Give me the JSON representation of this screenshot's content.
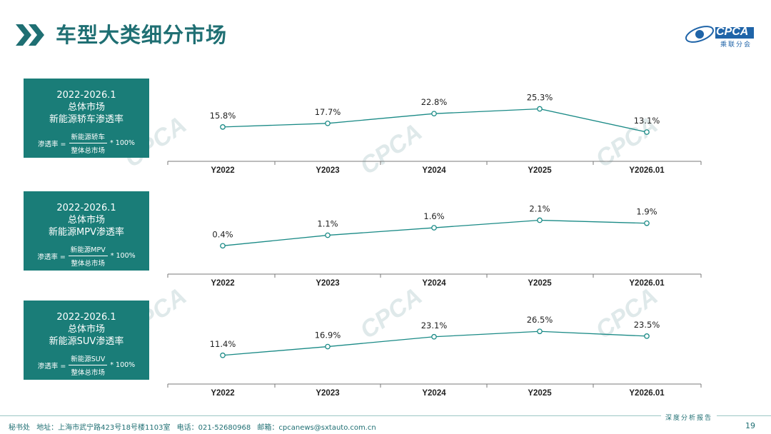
{
  "header": {
    "title": "车型大类细分市场"
  },
  "logo": {
    "brand": "CPCA",
    "sub": "乘联分会"
  },
  "panels": [
    {
      "l1": "2022-2026.1",
      "l2": "总体市场",
      "l3": "新能源轿车渗透率",
      "lhs": "渗透率 =",
      "num": "新能源轿车",
      "den": "整体总市场",
      "rhs": "* 100%"
    },
    {
      "l1": "2022-2026.1",
      "l2": "总体市场",
      "l3": "新能源MPV渗透率",
      "lhs": "渗透率 =",
      "num": "新能源MPV",
      "den": "整体总市场",
      "rhs": "* 100%"
    },
    {
      "l1": "2022-2026.1",
      "l2": "总体市场",
      "l3": "新能源SUV渗透率",
      "lhs": "渗透率 =",
      "num": "新能源SUV",
      "den": "整体总市场",
      "rhs": "* 100%"
    }
  ],
  "chart_data": [
    {
      "type": "line",
      "categories": [
        "Y2022",
        "Y2023",
        "Y2024",
        "Y2025",
        "Y2026.01"
      ],
      "values": [
        15.8,
        17.7,
        22.8,
        25.3,
        13.1
      ],
      "labels": [
        "15.8%",
        "17.7%",
        "22.8%",
        "25.3%",
        "13.1%"
      ],
      "ylim": [
        0,
        30
      ],
      "color": "#1a8a86"
    },
    {
      "type": "line",
      "categories": [
        "Y2022",
        "Y2023",
        "Y2024",
        "Y2025",
        "Y2026.01"
      ],
      "values": [
        0.4,
        1.1,
        1.6,
        2.1,
        1.9
      ],
      "labels": [
        "0.4%",
        "1.1%",
        "1.6%",
        "2.1%",
        "1.9%"
      ],
      "ylim": [
        -1.2,
        2.6
      ],
      "color": "#1a8a86"
    },
    {
      "type": "line",
      "categories": [
        "Y2022",
        "Y2023",
        "Y2024",
        "Y2025",
        "Y2026.01"
      ],
      "values": [
        11.4,
        16.9,
        23.1,
        26.5,
        23.5
      ],
      "labels": [
        "11.4%",
        "16.9%",
        "23.1%",
        "26.5%",
        "23.5%"
      ],
      "ylim": [
        -4,
        32
      ],
      "color": "#1a8a86"
    }
  ],
  "footer": {
    "office": "秘书处",
    "address": "地址：上海市武宁路423号18号楼1103室",
    "phone": "电话：021-52680968",
    "email": "邮箱：cpcanews@sxtauto.com.cn",
    "report": "深度分析报告",
    "page": "19"
  }
}
